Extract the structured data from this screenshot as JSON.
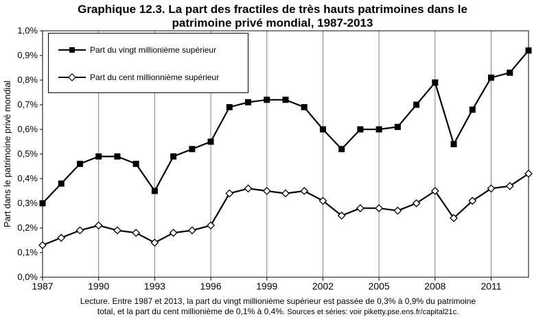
{
  "title_line1": "Graphique 12.3. La part des fractiles de très hauts patrimoines dans le",
  "title_line2": "patrimoine privé mondial, 1987-2013",
  "caption_line1": "Lecture. Entre 1987 et 2013, la part du vingt millionième  supérieur est passée de 0,3% à 0,9% du patrimoine",
  "caption_line2a": "total, et la part du cent millionième  de 0,1% à 0,4%.",
  "caption_line2b": " Sources et séries: voir piketty.pse.ens.fr/capital21c.",
  "legend": {
    "series1": "Part du vingt millionième supérieur",
    "series2": "Part du cent millionnième supérieur"
  },
  "colors": {
    "line": "#000000",
    "grid": "#7f7f7f",
    "open_marker": "#ffffff"
  },
  "chart_data": {
    "type": "line",
    "title": "Graphique 12.3. La part des fractiles de très hauts patrimoines dans le patrimoine privé mondial, 1987-2013",
    "xlabel": "",
    "ylabel": "Part dans le patrimoine privé mondial",
    "xlim": [
      1987,
      2013
    ],
    "ylim": [
      0,
      1.0
    ],
    "x_ticks": [
      1987,
      1990,
      1993,
      1996,
      1999,
      2002,
      2005,
      2008,
      2011
    ],
    "y_ticks": [
      0,
      0.1,
      0.2,
      0.3,
      0.4,
      0.5,
      0.6,
      0.7,
      0.8,
      0.9,
      1.0
    ],
    "y_tick_labels": [
      "0,0%",
      "0,1%",
      "0,2%",
      "0,3%",
      "0,4%",
      "0,5%",
      "0,6%",
      "0,7%",
      "0,8%",
      "0,9%",
      "1,0%"
    ],
    "grid": "vertical",
    "legend_position": "top-left",
    "x": [
      1987,
      1988,
      1989,
      1990,
      1991,
      1992,
      1993,
      1994,
      1995,
      1996,
      1997,
      1998,
      1999,
      2000,
      2001,
      2002,
      2003,
      2004,
      2005,
      2006,
      2007,
      2008,
      2009,
      2010,
      2011,
      2012,
      2013
    ],
    "series": [
      {
        "name": "Part du vingt millionième supérieur",
        "marker": "filled-square",
        "values": [
          0.3,
          0.38,
          0.46,
          0.49,
          0.49,
          0.46,
          0.35,
          0.49,
          0.52,
          0.55,
          0.69,
          0.71,
          0.72,
          0.72,
          0.69,
          0.6,
          0.52,
          0.6,
          0.6,
          0.61,
          0.7,
          0.79,
          0.54,
          0.68,
          0.81,
          0.83,
          0.92
        ]
      },
      {
        "name": "Part du cent millionnième supérieur",
        "marker": "open-diamond",
        "values": [
          0.13,
          0.16,
          0.19,
          0.21,
          0.19,
          0.18,
          0.14,
          0.18,
          0.19,
          0.21,
          0.34,
          0.36,
          0.35,
          0.34,
          0.35,
          0.31,
          0.25,
          0.28,
          0.28,
          0.27,
          0.3,
          0.35,
          0.24,
          0.31,
          0.36,
          0.37,
          0.42
        ]
      }
    ]
  }
}
